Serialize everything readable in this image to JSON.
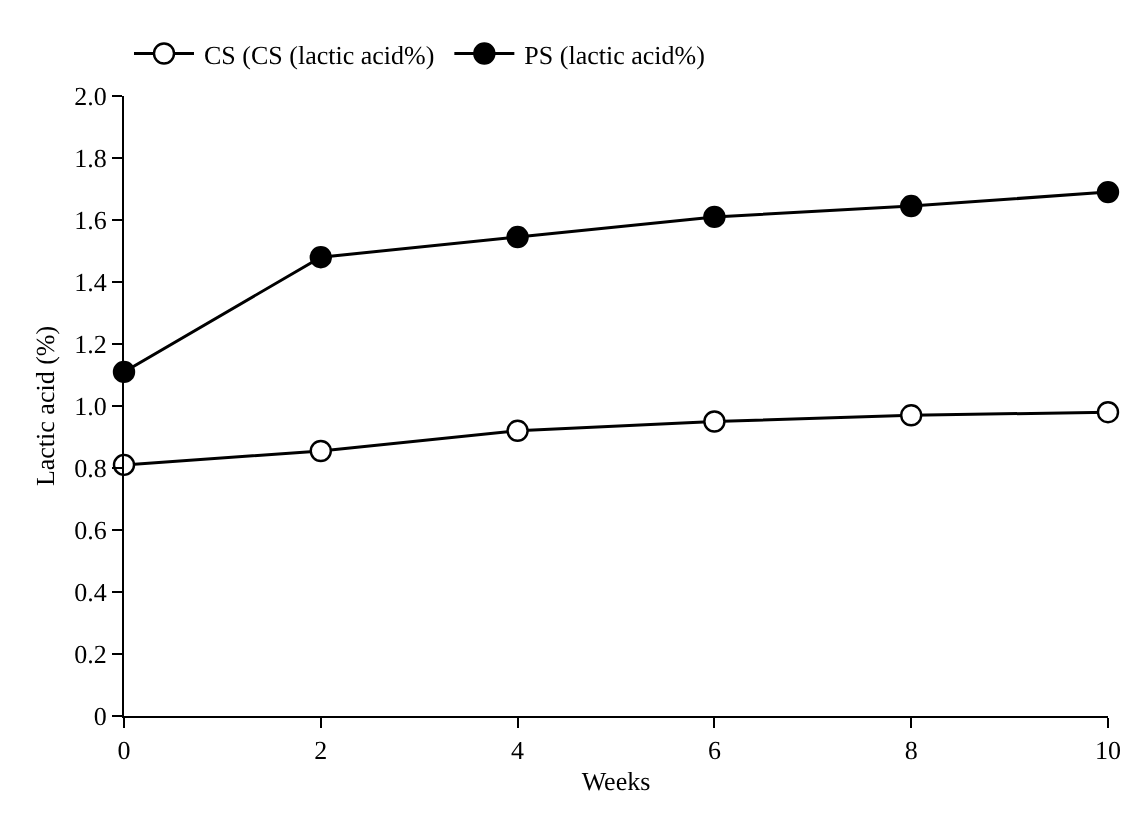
{
  "chart_data": {
    "type": "line",
    "xlabel": "Weeks",
    "ylabel": "Lactic acid (%)",
    "x": [
      0,
      2,
      4,
      6,
      8,
      10
    ],
    "series": [
      {
        "name": "CS (CS (lactic acid%)",
        "color": "#000000",
        "values": [
          0.81,
          0.855,
          0.92,
          0.95,
          0.97,
          0.98
        ]
      },
      {
        "name": "PS (lactic acid%)",
        "color": "#000000",
        "values": [
          1.11,
          1.48,
          1.545,
          1.61,
          1.645,
          1.69
        ]
      }
    ],
    "xlim": [
      0,
      10
    ],
    "xticks": [
      0,
      2,
      4,
      6,
      8,
      10
    ],
    "ylim": [
      0,
      2.0
    ],
    "yticks": [
      {
        "value": 0,
        "label": "0"
      },
      {
        "value": 0.2,
        "label": "0.2"
      },
      {
        "value": 0.4,
        "label": "0.4"
      },
      {
        "value": 0.6,
        "label": "0.6"
      },
      {
        "value": 0.8,
        "label": "0.8"
      },
      {
        "value": 1.0,
        "label": "1.0"
      },
      {
        "value": 1.2,
        "label": "1.2"
      },
      {
        "value": 1.4,
        "label": "1.4"
      },
      {
        "value": 1.6,
        "label": "1.6"
      },
      {
        "value": 1.8,
        "label": "1.8"
      },
      {
        "value": 2.0,
        "label": "2.0"
      }
    ],
    "legend": "top left",
    "marker": "circle",
    "line_style": "solid"
  }
}
